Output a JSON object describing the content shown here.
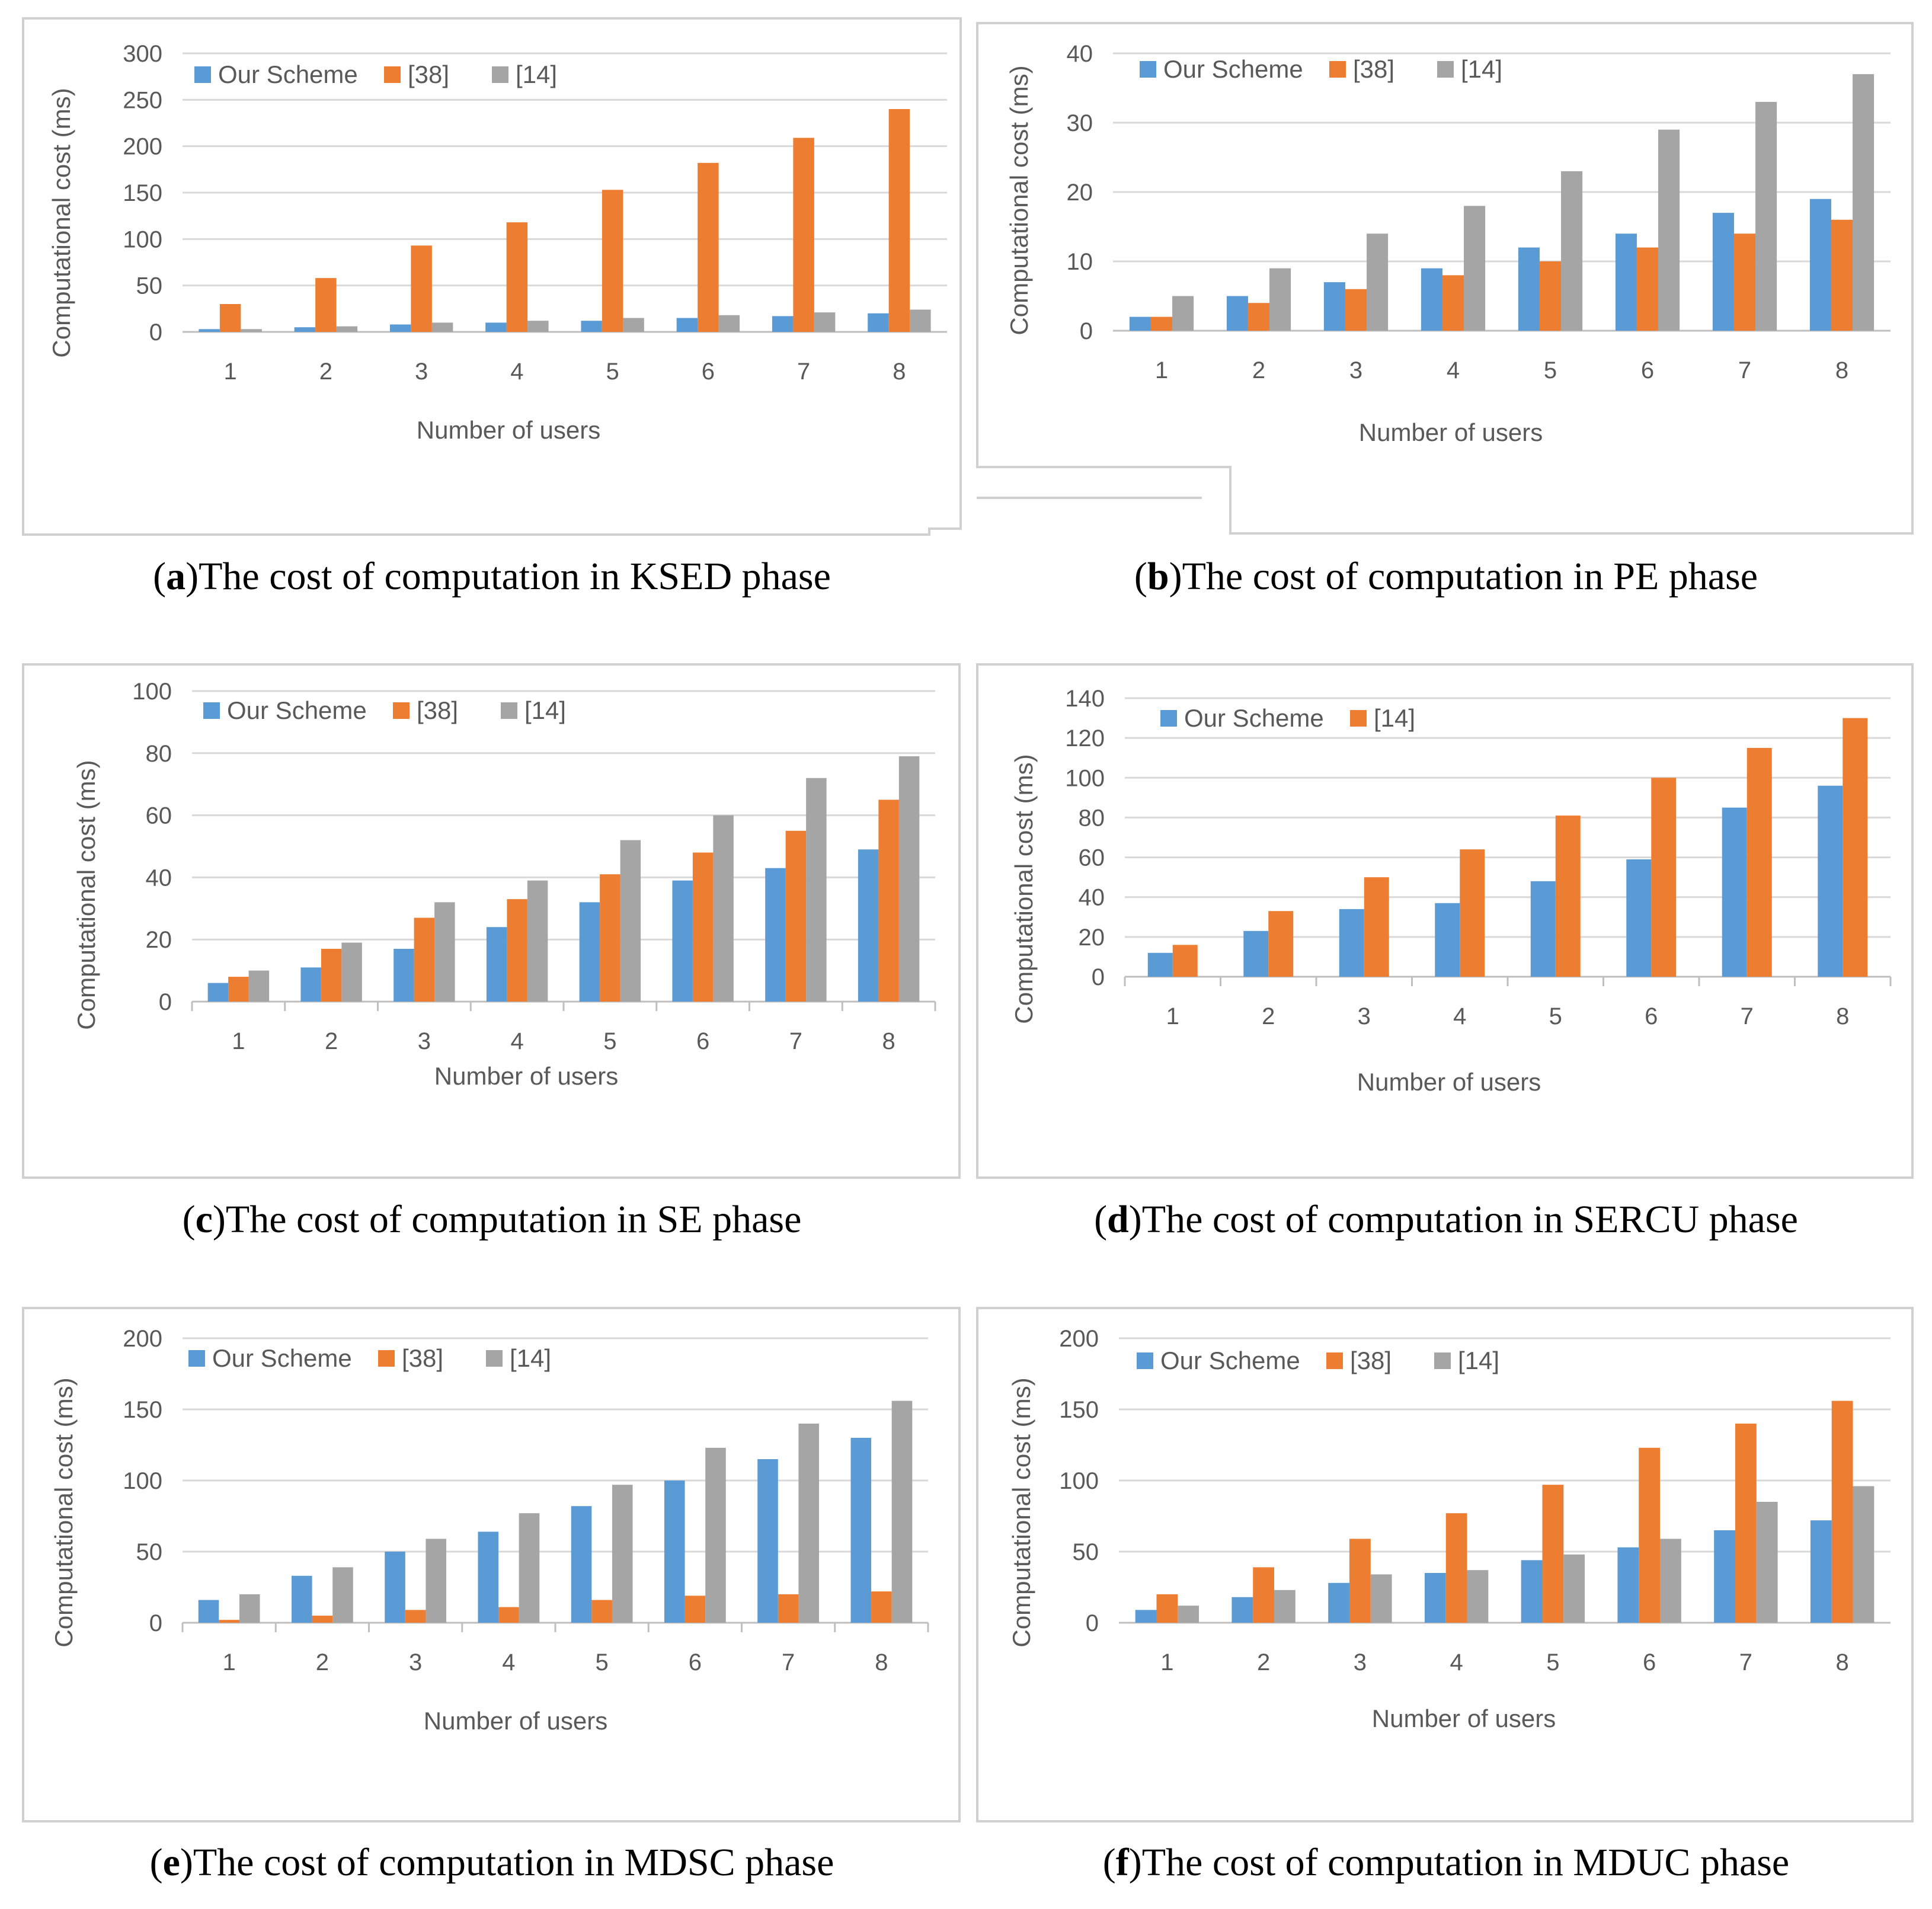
{
  "colors": {
    "our_scheme": "#5B9BD5",
    "ref38": "#ED7D31",
    "ref14": "#A5A5A5",
    "grid": "#D9D9D9",
    "axis": "#BFBFBF",
    "frame": "#D0D0D0"
  },
  "chart_data": [
    {
      "type": "bar",
      "title": "The cost of computation in KSED phase",
      "letter": "a",
      "xlabel": "Number of users",
      "ylabel": "Computational cost (ms)",
      "categories": [
        "1",
        "2",
        "3",
        "4",
        "5",
        "6",
        "7",
        "8"
      ],
      "ylim": [
        0,
        300
      ],
      "yticks": [
        0,
        50,
        100,
        150,
        200,
        250,
        300
      ],
      "legend": "top-left",
      "series": [
        {
          "name": "Our Scheme",
          "color_key": "our_scheme",
          "values": [
            3,
            5,
            8,
            10,
            12,
            15,
            17,
            20
          ]
        },
        {
          "name": "[38]",
          "color_key": "ref38",
          "values": [
            30,
            58,
            93,
            118,
            153,
            182,
            209,
            240
          ]
        },
        {
          "name": "[14]",
          "color_key": "ref14",
          "values": [
            3,
            6,
            10,
            12,
            15,
            18,
            21,
            24
          ]
        }
      ]
    },
    {
      "type": "bar",
      "title": "The cost of computation in PE phase",
      "letter": "b",
      "xlabel": "Number of users",
      "ylabel": "Computational cost (ms)",
      "categories": [
        "1",
        "2",
        "3",
        "4",
        "5",
        "6",
        "7",
        "8"
      ],
      "ylim": [
        0,
        40
      ],
      "yticks": [
        0,
        10,
        20,
        30,
        40
      ],
      "legend": "top-left",
      "series": [
        {
          "name": "Our Scheme",
          "color_key": "our_scheme",
          "values": [
            2,
            5,
            7,
            9,
            12,
            14,
            17,
            19
          ]
        },
        {
          "name": "[38]",
          "color_key": "ref38",
          "values": [
            2,
            4,
            6,
            8,
            10,
            12,
            14,
            16
          ]
        },
        {
          "name": "[14]",
          "color_key": "ref14",
          "values": [
            5,
            9,
            14,
            18,
            23,
            29,
            33,
            37
          ]
        }
      ]
    },
    {
      "type": "bar",
      "title": "The cost of computation in SE phase",
      "letter": "c",
      "xlabel": "Number of users",
      "ylabel": "Computational cost (ms)",
      "categories": [
        "1",
        "2",
        "3",
        "4",
        "5",
        "6",
        "7",
        "8"
      ],
      "ylim": [
        0,
        100
      ],
      "yticks": [
        0,
        20,
        40,
        60,
        80,
        100
      ],
      "legend": "top-left",
      "series": [
        {
          "name": "Our Scheme",
          "color_key": "our_scheme",
          "values": [
            6,
            11,
            17,
            24,
            32,
            39,
            43,
            49
          ]
        },
        {
          "name": "[38]",
          "color_key": "ref38",
          "values": [
            8,
            17,
            27,
            33,
            41,
            48,
            55,
            65
          ]
        },
        {
          "name": "[14]",
          "color_key": "ref14",
          "values": [
            10,
            19,
            32,
            39,
            52,
            60,
            72,
            79
          ]
        }
      ]
    },
    {
      "type": "bar",
      "title": "The cost of computation in SERCU phase",
      "letter": "d",
      "xlabel": "Number of users",
      "ylabel": "Computational cost (ms)",
      "categories": [
        "1",
        "2",
        "3",
        "4",
        "5",
        "6",
        "7",
        "8"
      ],
      "ylim": [
        0,
        140
      ],
      "yticks": [
        0,
        20,
        40,
        60,
        80,
        100,
        120,
        140
      ],
      "legend": "top-left",
      "series": [
        {
          "name": "Our Scheme",
          "color_key": "our_scheme",
          "values": [
            12,
            23,
            34,
            37,
            48,
            59,
            85,
            96
          ]
        },
        {
          "name": "[14]",
          "color_key": "ref38",
          "values": [
            16,
            33,
            50,
            64,
            81,
            100,
            115,
            130
          ]
        }
      ]
    },
    {
      "type": "bar",
      "title": "The cost of computation in MDSC phase",
      "letter": "e",
      "xlabel": "Number of users",
      "ylabel": "Computational cost (ms)",
      "categories": [
        "1",
        "2",
        "3",
        "4",
        "5",
        "6",
        "7",
        "8"
      ],
      "ylim": [
        0,
        200
      ],
      "yticks": [
        0,
        50,
        100,
        150,
        200
      ],
      "legend": "top-left",
      "series": [
        {
          "name": "Our Scheme",
          "color_key": "our_scheme",
          "values": [
            16,
            33,
            50,
            64,
            82,
            100,
            115,
            130
          ]
        },
        {
          "name": "[38]",
          "color_key": "ref38",
          "values": [
            2,
            5,
            9,
            11,
            16,
            19,
            20,
            22
          ]
        },
        {
          "name": "[14]",
          "color_key": "ref14",
          "values": [
            20,
            39,
            59,
            77,
            97,
            123,
            140,
            156
          ]
        }
      ]
    },
    {
      "type": "bar",
      "title": "The cost of computation in MDUC phase",
      "letter": "f",
      "xlabel": "Number of users",
      "ylabel": "Computational cost (ms)",
      "categories": [
        "1",
        "2",
        "3",
        "4",
        "5",
        "6",
        "7",
        "8"
      ],
      "ylim": [
        0,
        200
      ],
      "yticks": [
        0,
        50,
        100,
        150,
        200
      ],
      "legend": "top-left",
      "series": [
        {
          "name": "Our Scheme",
          "color_key": "our_scheme",
          "values": [
            9,
            18,
            28,
            35,
            44,
            53,
            65,
            72
          ]
        },
        {
          "name": "[38]",
          "color_key": "ref38",
          "values": [
            20,
            39,
            59,
            77,
            97,
            123,
            140,
            156
          ]
        },
        {
          "name": "[14]",
          "color_key": "ref14",
          "values": [
            12,
            23,
            34,
            37,
            48,
            59,
            85,
            96
          ]
        }
      ]
    }
  ]
}
